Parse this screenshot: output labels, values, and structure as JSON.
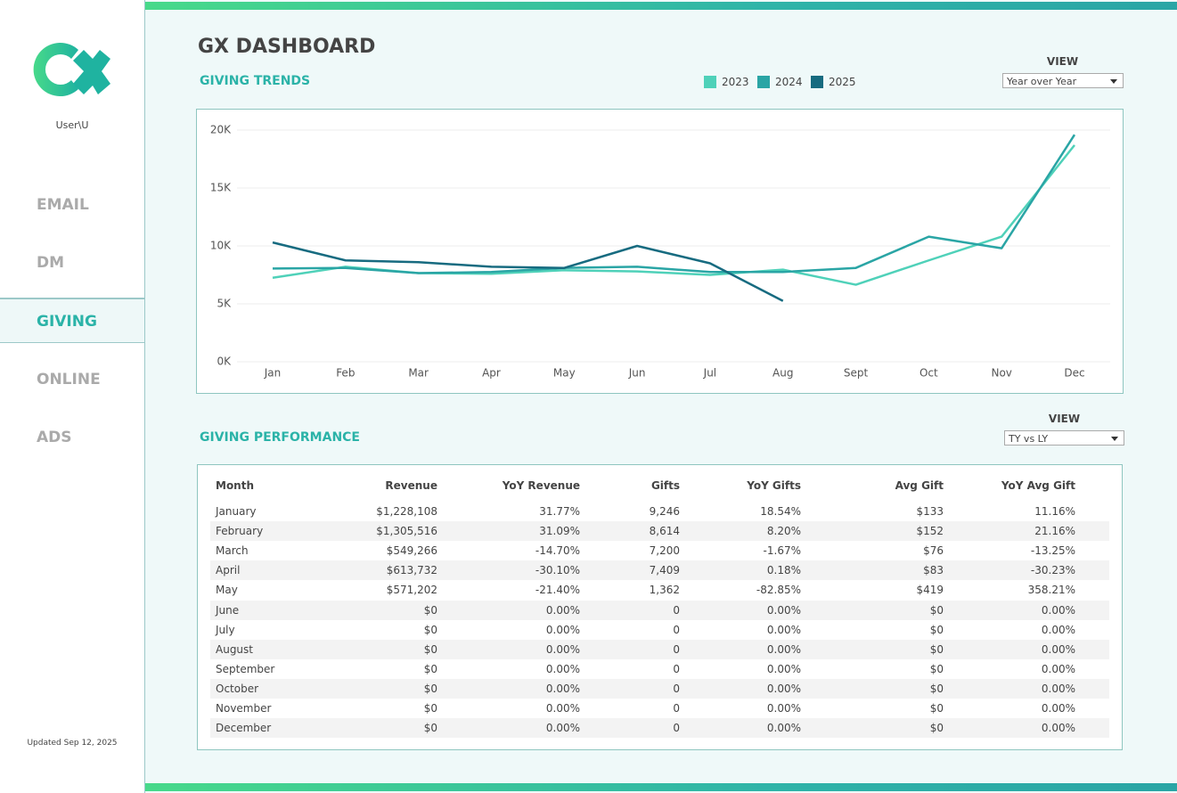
{
  "sidebar": {
    "user": "User\\U",
    "nav": [
      "EMAIL",
      "DM",
      "GIVING",
      "ONLINE",
      "ADS"
    ],
    "updated": "Updated Sep 12, 2025"
  },
  "header": {
    "title": "GX DASHBOARD"
  },
  "trends": {
    "title": "GIVING TRENDS",
    "view_label": "VIEW",
    "view_value": "Year over Year"
  },
  "chart_data": {
    "type": "line",
    "categories": [
      "Jan",
      "Feb",
      "Mar",
      "Apr",
      "May",
      "Jun",
      "Jul",
      "Aug",
      "Sept",
      "Oct",
      "Nov",
      "Dec"
    ],
    "series": [
      {
        "name": "2023",
        "color": "#4fd1b9",
        "values": [
          7250,
          8200,
          7650,
          7600,
          7900,
          7800,
          7500,
          7950,
          6650,
          8750,
          10800,
          18700
        ]
      },
      {
        "name": "2024",
        "color": "#2aa5a5",
        "values": [
          8050,
          8100,
          7650,
          7750,
          8100,
          8200,
          7750,
          7750,
          8100,
          10800,
          9800,
          19600
        ]
      },
      {
        "name": "2025",
        "color": "#176b80",
        "values": [
          10300,
          8750,
          8600,
          8200,
          8100,
          10000,
          8500,
          5250,
          null,
          null,
          null,
          null
        ]
      }
    ],
    "ylim": [
      0,
      20000
    ],
    "yticks": [
      {
        "value": 0,
        "label": "0K"
      },
      {
        "value": 5000,
        "label": "5K"
      },
      {
        "value": 10000,
        "label": "10K"
      },
      {
        "value": 15000,
        "label": "15K"
      },
      {
        "value": 20000,
        "label": "20K"
      }
    ],
    "grid": true
  },
  "performance": {
    "title": "GIVING PERFORMANCE",
    "view_label": "VIEW",
    "view_value": "TY vs LY",
    "table": {
      "columns": [
        "Month",
        "Revenue",
        "YoY Revenue",
        "Gifts",
        "YoY Gifts",
        "Avg Gift",
        "YoY Avg Gift"
      ],
      "rows": [
        [
          "January",
          "$1,228,108",
          "31.77%",
          "9,246",
          "18.54%",
          "$133",
          "11.16%"
        ],
        [
          "February",
          "$1,305,516",
          "31.09%",
          "8,614",
          "8.20%",
          "$152",
          "21.16%"
        ],
        [
          "March",
          "$549,266",
          "-14.70%",
          "7,200",
          "-1.67%",
          "$76",
          "-13.25%"
        ],
        [
          "April",
          "$613,732",
          "-30.10%",
          "7,409",
          "0.18%",
          "$83",
          "-30.23%"
        ],
        [
          "May",
          "$571,202",
          "-21.40%",
          "1,362",
          "-82.85%",
          "$419",
          "358.21%"
        ],
        [
          "June",
          "$0",
          "0.00%",
          "0",
          "0.00%",
          "$0",
          "0.00%"
        ],
        [
          "July",
          "$0",
          "0.00%",
          "0",
          "0.00%",
          "$0",
          "0.00%"
        ],
        [
          "August",
          "$0",
          "0.00%",
          "0",
          "0.00%",
          "$0",
          "0.00%"
        ],
        [
          "September",
          "$0",
          "0.00%",
          "0",
          "0.00%",
          "$0",
          "0.00%"
        ],
        [
          "October",
          "$0",
          "0.00%",
          "0",
          "0.00%",
          "$0",
          "0.00%"
        ],
        [
          "November",
          "$0",
          "0.00%",
          "0",
          "0.00%",
          "$0",
          "0.00%"
        ],
        [
          "December",
          "$0",
          "0.00%",
          "0",
          "0.00%",
          "$0",
          "0.00%"
        ]
      ]
    }
  }
}
